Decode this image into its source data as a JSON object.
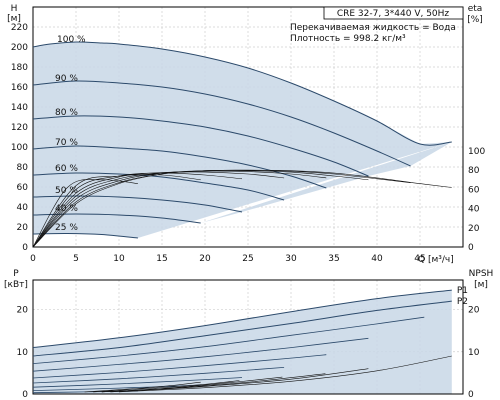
{
  "chart_data": [
    {
      "type": "line",
      "title": "CRE 32-7, 3*440 V, 50Hz",
      "info": [
        "Перекачиваемая жидкость = Вода",
        "Плотность = 998.2 кг/м³"
      ],
      "xlabel": "Q [м³/ч]",
      "ylabel": "H",
      "ylabel_unit": "[м]",
      "y2label": "eta",
      "y2label_unit": "[%]",
      "xlim": [
        0,
        50
      ],
      "ylim": [
        0,
        240
      ],
      "y2lim": [
        0,
        100
      ],
      "x_ticks": [
        0,
        5,
        10,
        15,
        20,
        25,
        30,
        35,
        40,
        45
      ],
      "y_ticks": [
        0,
        20,
        40,
        60,
        80,
        100,
        120,
        140,
        160,
        180,
        200,
        220
      ],
      "y2_ticks": [
        0,
        20,
        40,
        60,
        80,
        100
      ],
      "grid": true,
      "series": [
        {
          "name": "100 %",
          "x": [
            0,
            2,
            5,
            8,
            10,
            15,
            20,
            25,
            30,
            35,
            40,
            45,
            48.7
          ],
          "values": [
            200,
            203,
            205,
            204,
            203,
            198,
            190,
            179,
            164,
            146,
            126,
            103,
            105
          ]
        },
        {
          "name": "90 %",
          "x": [
            0,
            5,
            10,
            15,
            20,
            25,
            30,
            35,
            40,
            43.9
          ],
          "values": [
            162,
            166,
            164,
            160,
            153,
            143,
            130,
            114,
            96,
            81
          ]
        },
        {
          "name": "80 %",
          "x": [
            0,
            5,
            10,
            15,
            20,
            25,
            30,
            35,
            39
          ],
          "values": [
            128,
            131,
            130,
            126,
            120,
            111,
            99,
            85,
            71
          ]
        },
        {
          "name": "70 %",
          "x": [
            0,
            5,
            10,
            15,
            20,
            25,
            30,
            34.1
          ],
          "values": [
            98,
            101,
            99,
            96,
            90,
            82,
            71,
            59
          ]
        },
        {
          "name": "60 %",
          "x": [
            0,
            5,
            10,
            15,
            20,
            25,
            29.2
          ],
          "values": [
            72,
            74,
            73,
            70,
            64,
            57,
            47
          ]
        },
        {
          "name": "50 %",
          "x": [
            0,
            5,
            10,
            15,
            20,
            24.3
          ],
          "values": [
            50,
            51,
            50,
            47,
            42,
            35
          ]
        },
        {
          "name": "40 %",
          "x": [
            0,
            5,
            10,
            15,
            19.5
          ],
          "values": [
            32,
            33,
            32,
            29,
            24
          ]
        },
        {
          "name": "25 %",
          "x": [
            0,
            4,
            8,
            12.2
          ],
          "values": [
            13,
            13.5,
            12.5,
            9
          ]
        }
      ],
      "eta_series": [
        {
          "x": [
            0,
            5,
            10,
            15,
            20,
            25,
            30,
            35,
            40,
            45,
            48.7
          ],
          "values": [
            0,
            45,
            66,
            76,
            79.5,
            80,
            79.5,
            77,
            72,
            66,
            62
          ]
        },
        {
          "x": [
            0,
            5,
            10,
            15,
            20,
            25,
            30,
            35,
            40,
            43.9
          ],
          "values": [
            0,
            47,
            67,
            76,
            79.5,
            80,
            79,
            76,
            71,
            67
          ]
        },
        {
          "x": [
            0,
            5,
            10,
            15,
            20,
            25,
            30,
            35,
            39
          ],
          "values": [
            0,
            50,
            69,
            77,
            79.5,
            79.5,
            78,
            74,
            70
          ]
        },
        {
          "x": [
            0,
            5,
            10,
            15,
            20,
            25,
            30,
            34.1
          ],
          "values": [
            0,
            53,
            71,
            77,
            79,
            78.5,
            76,
            72
          ]
        },
        {
          "x": [
            0,
            5,
            10,
            15,
            20,
            25,
            29.2
          ],
          "values": [
            0,
            56,
            73,
            77.5,
            78,
            76,
            72
          ]
        },
        {
          "x": [
            0,
            5,
            10,
            15,
            20,
            24.3
          ],
          "values": [
            0,
            60,
            74,
            77,
            75,
            71
          ]
        },
        {
          "x": [
            0,
            5,
            10,
            15,
            19.5
          ],
          "values": [
            0,
            64,
            74,
            75,
            70
          ]
        },
        {
          "x": [
            0,
            4,
            8,
            12.2
          ],
          "values": [
            0,
            62,
            70,
            66
          ]
        }
      ]
    },
    {
      "type": "line",
      "ylabel": "P",
      "ylabel_unit": "[кВт]",
      "y2label": "NPSH",
      "y2label_unit": "[м]",
      "xlim": [
        0,
        50
      ],
      "ylim": [
        0,
        27
      ],
      "y2lim": [
        0,
        27
      ],
      "y_ticks": [
        0,
        10,
        20
      ],
      "y2_ticks": [
        0,
        10,
        20
      ],
      "grid": true,
      "series": [
        {
          "name": "P1",
          "x": [
            0,
            10,
            20,
            30,
            40,
            48.7
          ],
          "values": [
            11,
            13.3,
            16.2,
            19.5,
            22.6,
            24.6
          ]
        },
        {
          "name": "P2",
          "x": [
            0,
            10,
            20,
            30,
            40,
            48.7
          ],
          "values": [
            9,
            11,
            13.8,
            16.7,
            19.8,
            22
          ]
        }
      ],
      "power_curves": [
        {
          "x": [
            0,
            10,
            20,
            30,
            40,
            45.5
          ],
          "values": [
            7.2,
            9,
            11.2,
            13.9,
            16.6,
            18.2
          ]
        },
        {
          "x": [
            0,
            10,
            20,
            30,
            39
          ],
          "values": [
            5.4,
            7,
            8.8,
            11,
            13.2
          ]
        },
        {
          "x": [
            0,
            10,
            20,
            30,
            34.1
          ],
          "values": [
            3.8,
            5.1,
            6.7,
            8.5,
            9.3
          ]
        },
        {
          "x": [
            0,
            10,
            20,
            29.2
          ],
          "values": [
            2.6,
            3.6,
            4.9,
            6.3
          ]
        },
        {
          "x": [
            0,
            10,
            20,
            24.3
          ],
          "values": [
            1.6,
            2.4,
            3.4,
            3.9
          ]
        },
        {
          "x": [
            0,
            10,
            19.5
          ],
          "values": [
            0.8,
            1.4,
            2.1
          ]
        },
        {
          "x": [
            0,
            6,
            12.2
          ],
          "values": [
            0.3,
            0.5,
            0.7
          ]
        }
      ],
      "npsh_curves": [
        {
          "x": [
            10,
            20,
            30,
            40,
            48.7
          ],
          "values": [
            0.5,
            1.5,
            3,
            5.5,
            9
          ]
        },
        {
          "x": [
            9,
            20,
            30,
            39
          ],
          "values": [
            0.5,
            1.8,
            3.5,
            6
          ]
        },
        {
          "x": [
            8,
            15,
            25,
            34
          ],
          "values": [
            0.5,
            1.2,
            2.8,
            4.8
          ]
        },
        {
          "x": [
            8,
            15,
            22,
            29
          ],
          "values": [
            0.5,
            1.3,
            2.5,
            4
          ]
        },
        {
          "x": [
            7,
            14,
            19.5,
            24
          ],
          "values": [
            0.5,
            1.4,
            2.2,
            3.2
          ]
        },
        {
          "x": [
            6,
            12,
            16,
            19.5
          ],
          "values": [
            0.5,
            1.3,
            2,
            2.8
          ]
        }
      ]
    }
  ]
}
